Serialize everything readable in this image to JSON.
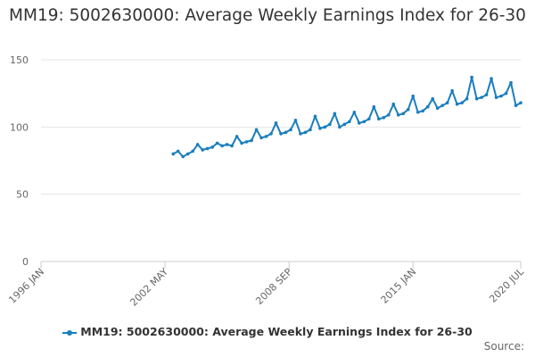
{
  "chart_data": {
    "type": "line",
    "title": "MM19: 5002630000: Average Weekly Earnings Index for 26-30",
    "xlabel": "",
    "ylabel": "",
    "ylim": [
      0,
      150
    ],
    "yticks": [
      0,
      50,
      100,
      150
    ],
    "xlim": [
      1996.0,
      2020.5
    ],
    "xtick_labels": [
      {
        "label": "1996 JAN",
        "x": 1996.0
      },
      {
        "label": "2002 MAY",
        "x": 2002.33
      },
      {
        "label": "2008 SEP",
        "x": 2008.67
      },
      {
        "label": "2015 JAN",
        "x": 2015.0
      },
      {
        "label": "2020 JUL",
        "x": 2020.5
      }
    ],
    "grid": "horizontal",
    "legend_position": "bottom",
    "series": [
      {
        "name": "MM19: 5002630000: Average Weekly Earnings Index for 26-30",
        "color": "#1a7ebd",
        "x": [
          2002.75,
          2003.0,
          2003.25,
          2003.5,
          2003.75,
          2004.0,
          2004.25,
          2004.5,
          2004.75,
          2005.0,
          2005.25,
          2005.5,
          2005.75,
          2006.0,
          2006.25,
          2006.5,
          2006.75,
          2007.0,
          2007.25,
          2007.5,
          2007.75,
          2008.0,
          2008.25,
          2008.5,
          2008.75,
          2009.0,
          2009.25,
          2009.5,
          2009.75,
          2010.0,
          2010.25,
          2010.5,
          2010.75,
          2011.0,
          2011.25,
          2011.5,
          2011.75,
          2012.0,
          2012.25,
          2012.5,
          2012.75,
          2013.0,
          2013.25,
          2013.5,
          2013.75,
          2014.0,
          2014.25,
          2014.5,
          2014.75,
          2015.0,
          2015.25,
          2015.5,
          2015.75,
          2016.0,
          2016.25,
          2016.5,
          2016.75,
          2017.0,
          2017.25,
          2017.5,
          2017.75,
          2018.0,
          2018.25,
          2018.5,
          2018.75,
          2019.0,
          2019.25,
          2019.5,
          2019.75,
          2020.0,
          2020.25,
          2020.5
        ],
        "values": [
          80,
          82,
          78,
          80,
          82,
          87,
          83,
          84,
          85,
          88,
          86,
          87,
          86,
          93,
          88,
          89,
          90,
          98,
          92,
          93,
          95,
          103,
          95,
          96,
          98,
          105,
          95,
          96,
          98,
          108,
          99,
          100,
          102,
          110,
          100,
          102,
          104,
          111,
          103,
          104,
          106,
          115,
          106,
          107,
          109,
          117,
          109,
          110,
          113,
          123,
          111,
          112,
          115,
          121,
          114,
          116,
          118,
          127,
          117,
          118,
          121,
          137,
          121,
          122,
          124,
          136,
          122,
          123,
          125,
          133,
          116,
          118
        ]
      }
    ]
  },
  "legend": {
    "label": "MM19: 5002630000: Average Weekly Earnings Index for 26-30"
  },
  "source": {
    "label": "Source:"
  }
}
